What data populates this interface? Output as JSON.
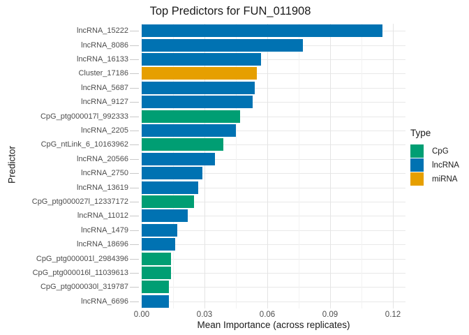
{
  "figure": {
    "legend": {
      "title": "Type",
      "entries": [
        {
          "label": "CpG",
          "color": "#009E73"
        },
        {
          "label": "lncRNA",
          "color": "#0072B2"
        },
        {
          "label": "miRNA",
          "color": "#E69F00"
        }
      ]
    }
  },
  "chart_data": {
    "type": "bar",
    "orientation": "horizontal",
    "title": "Top Predictors for FUN_011908",
    "xlabel": "Mean Importance (across replicates)",
    "ylabel": "Predictor",
    "xlim": [
      0,
      0.126
    ],
    "grid": "on",
    "legend_position": "right",
    "x_major_ticks": [
      0,
      0.03,
      0.06,
      0.09,
      0.12
    ],
    "x_tick_labels": [
      "0.00",
      "0.03",
      "0.06",
      "0.09",
      "0.12"
    ],
    "x_minor_ticks": [
      0.015,
      0.045,
      0.075,
      0.105
    ],
    "categories": [
      "lncRNA_15222",
      "lncRNA_8086",
      "lncRNA_16133",
      "Cluster_17186",
      "lncRNA_5687",
      "lncRNA_9127",
      "CpG_ptg000017l_992333",
      "lncRNA_2205",
      "CpG_ntLink_6_10163962",
      "lncRNA_20566",
      "lncRNA_2750",
      "lncRNA_13619",
      "CpG_ptg000027l_12337172",
      "lncRNA_11012",
      "lncRNA_1479",
      "lncRNA_18696",
      "CpG_ptg000001l_2984396",
      "CpG_ptg000016l_11039613",
      "CpG_ptg000030l_319787",
      "lncRNA_6696"
    ],
    "values": [
      0.115,
      0.077,
      0.057,
      0.055,
      0.054,
      0.053,
      0.047,
      0.045,
      0.039,
      0.035,
      0.029,
      0.027,
      0.025,
      0.022,
      0.017,
      0.016,
      0.014,
      0.014,
      0.013,
      0.013
    ],
    "types": [
      "lncRNA",
      "lncRNA",
      "lncRNA",
      "miRNA",
      "lncRNA",
      "lncRNA",
      "CpG",
      "lncRNA",
      "CpG",
      "lncRNA",
      "lncRNA",
      "lncRNA",
      "CpG",
      "lncRNA",
      "lncRNA",
      "lncRNA",
      "CpG",
      "CpG",
      "CpG",
      "lncRNA"
    ],
    "type_colors": {
      "CpG": "#009E73",
      "lncRNA": "#0072B2",
      "miRNA": "#E69F00"
    }
  }
}
